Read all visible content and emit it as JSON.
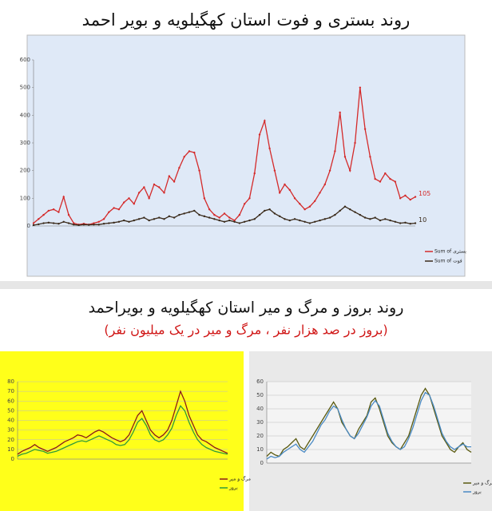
{
  "chart_data": [
    {
      "type": "line",
      "title": "روند بستری و فوت استان کهگیلویه و بویر احمد",
      "ylim": [
        0,
        600
      ],
      "yticks": [
        0,
        100,
        200,
        300,
        400,
        500,
        600
      ],
      "grid": false,
      "legend": "right",
      "series": [
        {
          "name": "Sum of بستری",
          "color": "#d42a2a",
          "values": [
            10,
            25,
            40,
            55,
            60,
            50,
            105,
            40,
            10,
            5,
            8,
            5,
            10,
            15,
            25,
            50,
            65,
            60,
            85,
            100,
            80,
            120,
            140,
            100,
            150,
            140,
            120,
            180,
            160,
            210,
            250,
            270,
            265,
            200,
            100,
            60,
            40,
            30,
            45,
            30,
            20,
            40,
            80,
            100,
            190,
            330,
            380,
            280,
            200,
            120,
            150,
            130,
            100,
            80,
            60,
            70,
            90,
            120,
            150,
            200,
            270,
            410,
            250,
            200,
            300,
            500,
            350,
            250,
            170,
            160,
            190,
            170,
            160,
            100,
            110,
            95,
            105
          ]
        },
        {
          "name": "Sum of فوت",
          "color": "#3a2a1a",
          "values": [
            3,
            6,
            10,
            12,
            10,
            8,
            15,
            10,
            5,
            3,
            5,
            4,
            5,
            5,
            8,
            10,
            12,
            15,
            20,
            15,
            20,
            25,
            30,
            20,
            25,
            30,
            25,
            35,
            30,
            40,
            45,
            50,
            55,
            40,
            35,
            30,
            25,
            20,
            15,
            20,
            15,
            10,
            15,
            20,
            25,
            40,
            55,
            60,
            45,
            35,
            25,
            20,
            25,
            20,
            15,
            10,
            15,
            20,
            25,
            30,
            40,
            55,
            70,
            60,
            50,
            40,
            30,
            25,
            30,
            20,
            25,
            20,
            15,
            10,
            12,
            8,
            10
          ]
        }
      ]
    },
    {
      "type": "line",
      "title": "روند بروز و مرگ و میر استان کهگیلویه و بویراحمد",
      "subtitle": "(بروز در صد هزار نفر ، مرگ و میر در یک میلیون نفر)",
      "ylim": [
        0,
        80
      ],
      "yticks": [
        0,
        10,
        20,
        30,
        40,
        50,
        60,
        70,
        80
      ],
      "grid": true,
      "legend": "lower right",
      "series": [
        {
          "name": "مرگ و میر",
          "color": "#8b1a1a",
          "values": [
            5,
            8,
            10,
            12,
            15,
            12,
            10,
            8,
            10,
            12,
            15,
            18,
            20,
            22,
            25,
            24,
            22,
            25,
            28,
            30,
            28,
            25,
            22,
            20,
            18,
            20,
            25,
            35,
            45,
            50,
            40,
            30,
            25,
            22,
            25,
            30,
            40,
            55,
            70,
            60,
            45,
            35,
            25,
            20,
            18,
            15,
            12,
            10,
            8,
            6
          ]
        },
        {
          "name": "بروز",
          "color": "#2e9a3a",
          "values": [
            3,
            5,
            6,
            8,
            10,
            9,
            8,
            6,
            7,
            8,
            10,
            12,
            14,
            16,
            18,
            19,
            18,
            20,
            22,
            24,
            22,
            20,
            18,
            15,
            14,
            15,
            20,
            28,
            38,
            42,
            35,
            25,
            20,
            18,
            20,
            25,
            32,
            45,
            55,
            50,
            38,
            28,
            20,
            15,
            12,
            10,
            8,
            7,
            6,
            5
          ]
        }
      ]
    },
    {
      "type": "line",
      "ylim": [
        0,
        60
      ],
      "yticks": [
        0,
        10,
        20,
        30,
        40,
        50,
        60
      ],
      "grid": true,
      "legend": "lower right",
      "series": [
        {
          "name": "مرگ و میر",
          "color": "#5a5a10",
          "values": [
            5,
            8,
            6,
            5,
            10,
            12,
            15,
            18,
            12,
            10,
            15,
            20,
            25,
            30,
            35,
            40,
            45,
            40,
            30,
            25,
            20,
            18,
            25,
            30,
            35,
            45,
            48,
            40,
            30,
            20,
            15,
            12,
            10,
            15,
            20,
            30,
            40,
            50,
            55,
            50,
            40,
            30,
            20,
            15,
            10,
            8,
            12,
            15,
            10,
            8
          ]
        },
        {
          "name": "بروز",
          "color": "#4a8ac4",
          "values": [
            3,
            5,
            4,
            5,
            8,
            10,
            12,
            14,
            10,
            8,
            12,
            16,
            22,
            28,
            32,
            38,
            42,
            40,
            32,
            25,
            20,
            18,
            22,
            28,
            34,
            42,
            46,
            42,
            32,
            22,
            16,
            12,
            10,
            12,
            18,
            26,
            36,
            46,
            52,
            50,
            42,
            32,
            22,
            16,
            12,
            10,
            12,
            14,
            12,
            12
          ]
        }
      ]
    }
  ]
}
